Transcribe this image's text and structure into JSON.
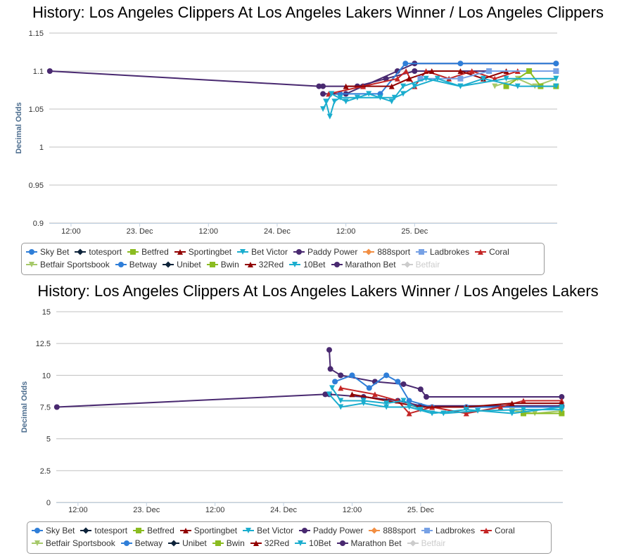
{
  "legend": [
    {
      "name": "Sky Bet",
      "color": "#2f7ed8",
      "symbol": "circle"
    },
    {
      "name": "totesport",
      "color": "#0d233a",
      "symbol": "diamond"
    },
    {
      "name": "Betfred",
      "color": "#8bbc21",
      "symbol": "square"
    },
    {
      "name": "Sportingbet",
      "color": "#910000",
      "symbol": "triangle"
    },
    {
      "name": "Bet Victor",
      "color": "#1aadce",
      "symbol": "triangle-down"
    },
    {
      "name": "Paddy Power",
      "color": "#492970",
      "symbol": "circle"
    },
    {
      "name": "888sport",
      "color": "#f28f43",
      "symbol": "diamond"
    },
    {
      "name": "Ladbrokes",
      "color": "#77a1e5",
      "symbol": "square"
    },
    {
      "name": "Coral",
      "color": "#c42525",
      "symbol": "triangle"
    },
    {
      "name": "Betfair Sportsbook",
      "color": "#a6c96a",
      "symbol": "triangle-down"
    },
    {
      "name": "Betway",
      "color": "#2f7ed8",
      "symbol": "circle"
    },
    {
      "name": "Unibet",
      "color": "#0d233a",
      "symbol": "diamond"
    },
    {
      "name": "Bwin",
      "color": "#8bbc21",
      "symbol": "square"
    },
    {
      "name": "32Red",
      "color": "#910000",
      "symbol": "triangle"
    },
    {
      "name": "10Bet",
      "color": "#1aadce",
      "symbol": "triangle-down"
    },
    {
      "name": "Marathon Bet",
      "color": "#492970",
      "symbol": "circle"
    },
    {
      "name": "Betfair",
      "color": "#cccccc",
      "symbol": "diamond",
      "hidden": true
    }
  ],
  "chart_data": [
    {
      "type": "line",
      "title": "History: Los Angeles Clippers At Los Angeles Lakers Winner / Los Angeles Clippers",
      "ylabel": "Decimal Odds",
      "ylim": [
        0.9,
        1.15
      ],
      "yticks": [
        "0.9",
        "0.95",
        "1",
        "1.05",
        "1.1",
        "1.15"
      ],
      "ytick_values": [
        0.9,
        0.95,
        1,
        1.05,
        1.1,
        1.15
      ],
      "x_unit": "hours since 22 Dec 00:00",
      "xlim": [
        8.2,
        96.9
      ],
      "xticks": [
        {
          "label": "12:00",
          "value": 12
        },
        {
          "label": "23. Dec",
          "value": 24
        },
        {
          "label": "12:00",
          "value": 36
        },
        {
          "label": "24. Dec",
          "value": 48
        },
        {
          "label": "12:00",
          "value": 60
        },
        {
          "label": "25. Dec",
          "value": 72
        }
      ],
      "series": [
        {
          "name": "Marathon Bet",
          "points": [
            [
              8.3,
              1.1
            ],
            [
              55.3,
              1.08
            ],
            [
              56.0,
              1.08
            ],
            [
              62.0,
              1.08
            ],
            [
              67.0,
              1.09
            ],
            [
              72.0,
              1.1
            ],
            [
              96.7,
              1.1
            ]
          ]
        },
        {
          "name": "Paddy Power",
          "points": [
            [
              56.0,
              1.07
            ],
            [
              60.0,
              1.07
            ],
            [
              63.0,
              1.08
            ],
            [
              69.0,
              1.1
            ],
            [
              72.0,
              1.11
            ],
            [
              96.7,
              1.11
            ]
          ]
        },
        {
          "name": "Sky Bet",
          "points": [
            [
              59.0,
              1.07
            ],
            [
              66.0,
              1.07
            ],
            [
              70.4,
              1.11
            ],
            [
              80.0,
              1.11
            ],
            [
              96.7,
              1.11
            ]
          ]
        },
        {
          "name": "Coral",
          "points": [
            [
              57.0,
              1.07
            ],
            [
              63.0,
              1.08
            ],
            [
              69.0,
              1.09
            ],
            [
              70.5,
              1.1
            ],
            [
              72.0,
              1.08
            ],
            [
              74.0,
              1.1
            ],
            [
              78.0,
              1.09
            ],
            [
              82.0,
              1.1
            ],
            [
              86.0,
              1.09
            ],
            [
              90.0,
              1.1
            ],
            [
              96.7,
              1.1
            ]
          ]
        },
        {
          "name": "Sportingbet",
          "points": [
            [
              60.0,
              1.08
            ],
            [
              68.0,
              1.08
            ],
            [
              71.0,
              1.09
            ],
            [
              75.0,
              1.1
            ],
            [
              80.0,
              1.1
            ],
            [
              84.0,
              1.09
            ],
            [
              88.0,
              1.1
            ],
            [
              96.7,
              1.1
            ]
          ]
        },
        {
          "name": "Ladbrokes",
          "points": [
            [
              73.0,
              1.09
            ],
            [
              80.0,
              1.09
            ],
            [
              85.0,
              1.1
            ],
            [
              96.7,
              1.1
            ]
          ]
        },
        {
          "name": "Betfair Sportsbook",
          "points": [
            [
              86.0,
              1.08
            ],
            [
              90.0,
              1.09
            ],
            [
              93.0,
              1.08
            ],
            [
              96.7,
              1.09
            ]
          ]
        },
        {
          "name": "Bwin",
          "points": [
            [
              88.0,
              1.08
            ],
            [
              92.0,
              1.1
            ],
            [
              94.0,
              1.08
            ],
            [
              96.7,
              1.08
            ]
          ]
        },
        {
          "name": "Bet Victor",
          "points": [
            [
              56.5,
              1.06
            ],
            [
              57.2,
              1.04
            ],
            [
              58.0,
              1.06
            ],
            [
              59.0,
              1.065
            ],
            [
              62.0,
              1.065
            ],
            [
              66.0,
              1.065
            ],
            [
              68.5,
              1.065
            ],
            [
              70.0,
              1.07
            ],
            [
              72.0,
              1.08
            ],
            [
              76.0,
              1.09
            ],
            [
              80.0,
              1.08
            ],
            [
              84.0,
              1.09
            ],
            [
              90.0,
              1.08
            ],
            [
              96.7,
              1.08
            ]
          ]
        },
        {
          "name": "10Bet",
          "points": [
            [
              56.0,
              1.05
            ],
            [
              57.5,
              1.07
            ],
            [
              60.0,
              1.06
            ],
            [
              64.0,
              1.07
            ],
            [
              68.0,
              1.06
            ],
            [
              70.0,
              1.08
            ],
            [
              74.0,
              1.09
            ],
            [
              80.0,
              1.08
            ],
            [
              88.0,
              1.09
            ],
            [
              96.7,
              1.09
            ]
          ]
        }
      ]
    },
    {
      "type": "line",
      "title": "History: Los Angeles Clippers At Los Angeles Lakers Winner / Los Angeles Lakers",
      "ylabel": "Decimal Odds",
      "ylim": [
        0,
        15
      ],
      "yticks": [
        "0",
        "2.5",
        "5",
        "7.5",
        "10",
        "12.5",
        "15"
      ],
      "ytick_values": [
        0,
        2.5,
        5,
        7.5,
        10,
        12.5,
        15
      ],
      "x_unit": "hours since 22 Dec 00:00",
      "xlim": [
        8.2,
        96.9
      ],
      "xticks": [
        {
          "label": "12:00",
          "value": 12
        },
        {
          "label": "23. Dec",
          "value": 24
        },
        {
          "label": "12:00",
          "value": 36
        },
        {
          "label": "24. Dec",
          "value": 48
        },
        {
          "label": "12:00",
          "value": 60
        },
        {
          "label": "25. Dec",
          "value": 72
        }
      ],
      "series": [
        {
          "name": "Marathon Bet",
          "points": [
            [
              8.3,
              7.5
            ],
            [
              55.3,
              8.5
            ],
            [
              56.0,
              8.5
            ],
            [
              62.0,
              8.3
            ],
            [
              68.0,
              8.0
            ],
            [
              72.0,
              7.6
            ],
            [
              96.7,
              7.6
            ]
          ]
        },
        {
          "name": "Paddy Power",
          "points": [
            [
              56.0,
              12.0
            ],
            [
              56.2,
              10.5
            ],
            [
              58.0,
              10.0
            ],
            [
              64.0,
              9.5
            ],
            [
              69.0,
              9.3
            ],
            [
              72.0,
              8.9
            ],
            [
              73.0,
              8.3
            ],
            [
              96.7,
              8.3
            ]
          ]
        },
        {
          "name": "Sky Bet",
          "points": [
            [
              57.0,
              9.5
            ],
            [
              60.0,
              10.0
            ],
            [
              63.0,
              9.0
            ],
            [
              66.0,
              10.0
            ],
            [
              68.0,
              9.5
            ],
            [
              70.0,
              8.0
            ],
            [
              74.0,
              7.5
            ],
            [
              80.0,
              7.5
            ],
            [
              96.7,
              7.5
            ]
          ]
        },
        {
          "name": "Coral",
          "points": [
            [
              58.0,
              9.0
            ],
            [
              64.0,
              8.5
            ],
            [
              68.0,
              8.0
            ],
            [
              70.0,
              7.0
            ],
            [
              74.0,
              7.5
            ],
            [
              80.0,
              7.0
            ],
            [
              86.0,
              7.5
            ],
            [
              90.0,
              8.0
            ],
            [
              96.7,
              8.0
            ]
          ]
        },
        {
          "name": "Sportingbet",
          "points": [
            [
              60.0,
              8.5
            ],
            [
              66.0,
              8.0
            ],
            [
              72.0,
              7.5
            ],
            [
              80.0,
              7.5
            ],
            [
              88.0,
              7.8
            ],
            [
              96.7,
              7.8
            ]
          ]
        },
        {
          "name": "Betfair Sportsbook",
          "points": [
            [
              88.0,
              7.2
            ],
            [
              92.0,
              7.0
            ],
            [
              96.7,
              7.2
            ]
          ]
        },
        {
          "name": "Bwin",
          "points": [
            [
              90.0,
              7.0
            ],
            [
              96.7,
              7.0
            ]
          ]
        },
        {
          "name": "Bet Victor",
          "points": [
            [
              56.5,
              9.0
            ],
            [
              58.0,
              8.0
            ],
            [
              62.0,
              8.0
            ],
            [
              66.0,
              7.8
            ],
            [
              69.0,
              8.0
            ],
            [
              72.0,
              7.3
            ],
            [
              76.0,
              7.0
            ],
            [
              82.0,
              7.2
            ],
            [
              90.0,
              7.3
            ],
            [
              96.7,
              7.3
            ]
          ]
        },
        {
          "name": "10Bet",
          "points": [
            [
              56.0,
              8.5
            ],
            [
              58.0,
              7.5
            ],
            [
              62.0,
              7.8
            ],
            [
              66.0,
              7.5
            ],
            [
              70.0,
              7.5
            ],
            [
              74.0,
              7.0
            ],
            [
              80.0,
              7.3
            ],
            [
              88.0,
              7.0
            ],
            [
              96.7,
              7.5
            ]
          ]
        }
      ]
    }
  ]
}
